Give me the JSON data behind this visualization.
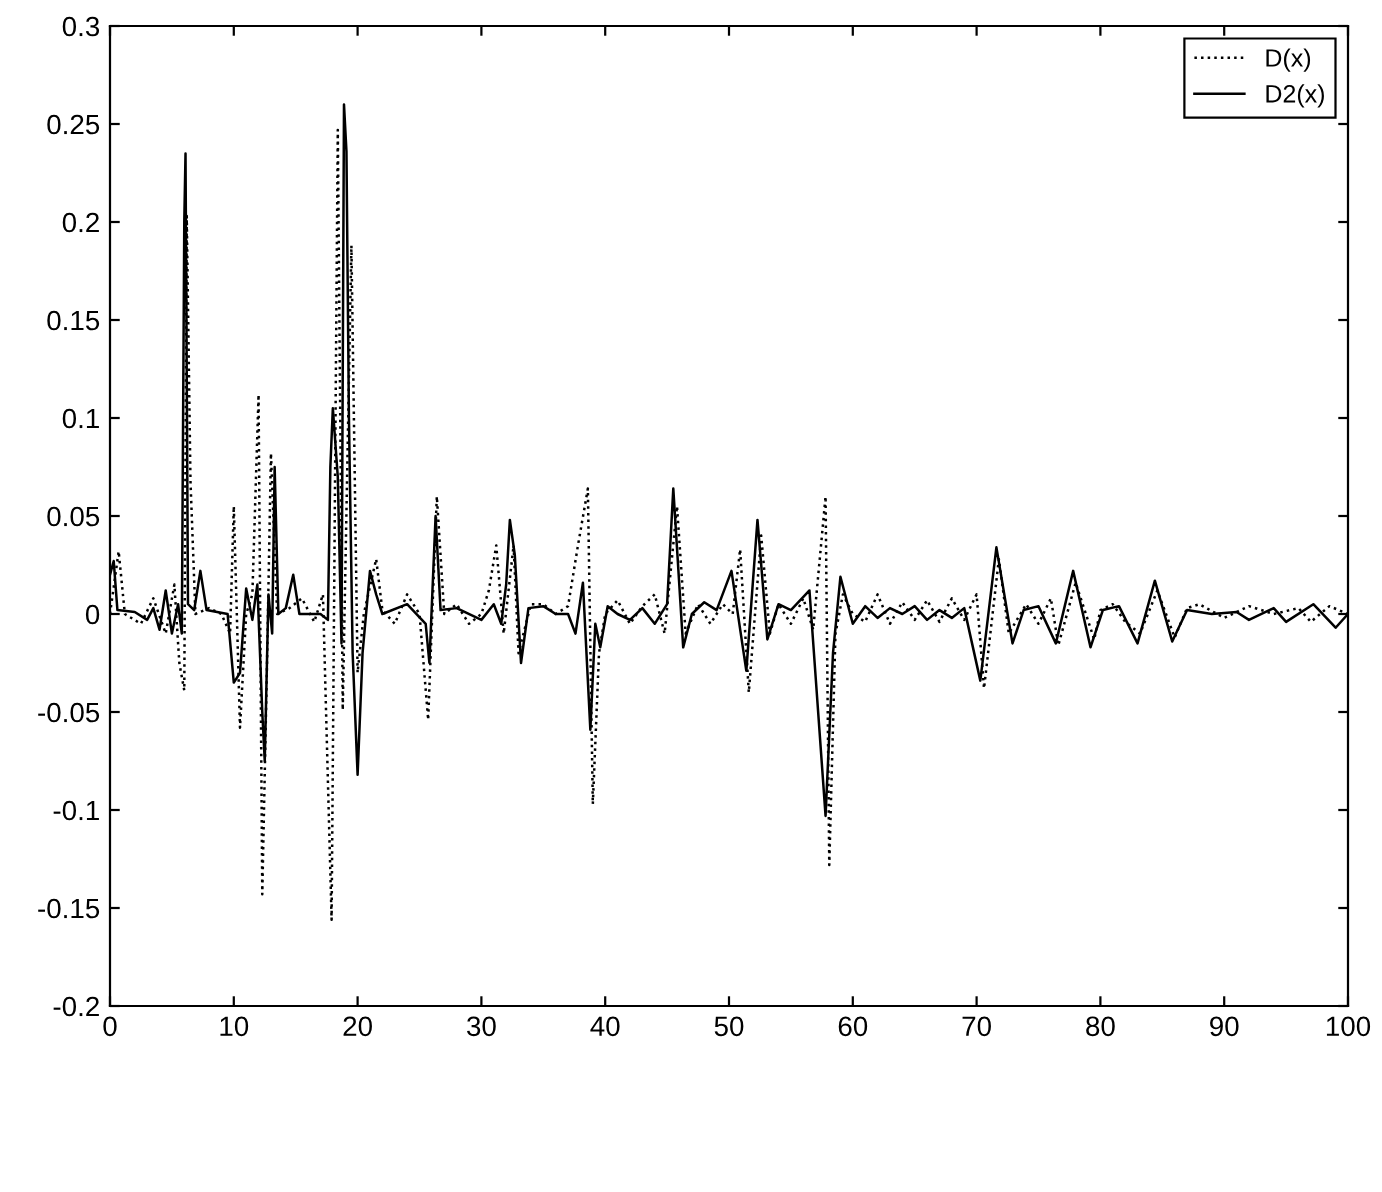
{
  "chart_data": {
    "type": "line",
    "xlim": [
      0,
      100
    ],
    "xticks": [
      0,
      10,
      20,
      30,
      40,
      50,
      60,
      70,
      80,
      90,
      100
    ],
    "ylim": [
      -0.2,
      0.3
    ],
    "yticks": [
      -0.2,
      -0.15,
      -0.1,
      -0.05,
      0,
      0.05,
      0.1,
      0.15,
      0.2,
      0.25,
      0.3
    ],
    "grid": false,
    "legend": "top right",
    "marker": "none",
    "series": [
      {
        "name": "D(x)",
        "color": "#000000",
        "line_style": "dotted",
        "x": [
          0,
          0.7,
          1.2,
          2.5,
          3.5,
          4.5,
          5.2,
          5.6,
          6.0,
          6.2,
          6.5,
          6.9,
          8,
          9,
          9.7,
          10.0,
          10.5,
          11,
          11.5,
          12.0,
          12.3,
          12.7,
          13.0,
          13.5,
          14.5,
          15.5,
          16.5,
          17.2,
          17.9,
          18.4,
          18.8,
          19.5,
          20.0,
          20.5,
          21.5,
          22,
          23,
          24,
          25,
          25.7,
          26.4,
          27,
          28,
          29,
          30,
          30.6,
          31.2,
          31.8,
          32.6,
          33,
          34,
          35,
          36,
          37,
          37.8,
          38.6,
          39.0,
          39.5,
          40,
          41,
          42,
          43,
          44,
          44.8,
          45.8,
          46.5,
          47.5,
          48.5,
          49.5,
          50.3,
          50.9,
          51.6,
          52.6,
          53.3,
          54,
          55,
          56,
          56.8,
          57.8,
          58.1,
          58.6,
          59.2,
          60,
          61,
          62,
          63,
          64,
          65,
          66,
          67,
          68,
          69,
          70.0,
          70.6,
          71.8,
          72.6,
          74,
          75,
          76,
          76.6,
          78,
          79.5,
          80,
          81,
          82,
          83.2,
          84.6,
          86,
          87,
          88,
          90,
          92,
          94,
          96,
          97,
          98.5,
          100
        ],
        "values": [
          0,
          0.032,
          0,
          -0.005,
          0.008,
          -0.01,
          0.015,
          -0.025,
          -0.039,
          0.203,
          0.068,
          0,
          0.003,
          0,
          -0.01,
          0.055,
          -0.058,
          0,
          0.01,
          0.112,
          -0.143,
          -0.02,
          0.082,
          0,
          0.003,
          0.008,
          -0.004,
          0.01,
          -0.156,
          0.247,
          -0.049,
          0.188,
          -0.03,
          0,
          0.028,
          0.002,
          -0.005,
          0.01,
          0,
          -0.054,
          0.06,
          0,
          0.005,
          -0.005,
          0,
          0.012,
          0.035,
          -0.01,
          0.035,
          -0.02,
          0.005,
          0.005,
          0,
          0.004,
          0.035,
          0.064,
          -0.097,
          -0.02,
          0,
          0.007,
          -0.005,
          0.004,
          0.01,
          -0.01,
          0.055,
          -0.01,
          0.005,
          -0.005,
          0.005,
          0,
          0.033,
          -0.04,
          0.04,
          -0.01,
          0.005,
          -0.005,
          0.008,
          -0.008,
          0.06,
          -0.128,
          -0.01,
          0.01,
          0,
          -0.004,
          0.01,
          -0.005,
          0.006,
          -0.003,
          0.007,
          -0.004,
          0.008,
          -0.003,
          0.01,
          -0.038,
          0.028,
          -0.01,
          0.005,
          -0.005,
          0.008,
          -0.016,
          0.016,
          -0.013,
          0.002,
          0.005,
          -0.004,
          -0.01,
          0.012,
          -0.012,
          0.003,
          0.005,
          -0.002,
          0.004,
          0,
          0.003,
          -0.004,
          0.004,
          0
        ]
      },
      {
        "name": "D2(x)",
        "color": "#000000",
        "line_style": "solid",
        "x": [
          0,
          0.3,
          0.6,
          2,
          3,
          3.5,
          4,
          4.5,
          5,
          5.5,
          5.8,
          6.0,
          6.1,
          6.3,
          6.8,
          7.3,
          7.8,
          9.5,
          10,
          10.5,
          11,
          11.5,
          11.9,
          12.3,
          12.5,
          12.8,
          13.1,
          13.3,
          13.6,
          14.2,
          14.8,
          15.3,
          17,
          17.6,
          17.8,
          18.0,
          18.4,
          18.7,
          18.9,
          19.1,
          19.3,
          19.6,
          20.0,
          20.4,
          21,
          21.5,
          22,
          24,
          25.5,
          25.8,
          26.3,
          26.7,
          28,
          30,
          31,
          31.6,
          32.0,
          32.3,
          32.7,
          33.2,
          33.8,
          35,
          36,
          37,
          37.6,
          38.2,
          38.8,
          39.2,
          39.6,
          40.2,
          41,
          42,
          43,
          44,
          45,
          45.5,
          46.3,
          47,
          48,
          49,
          50.2,
          51.4,
          52.3,
          53.1,
          54,
          55,
          56.5,
          57.8,
          58.4,
          59,
          60,
          61,
          62,
          63,
          64,
          65,
          66,
          67,
          68,
          69,
          70.3,
          71.6,
          72.9,
          73.8,
          75,
          76.4,
          77.8,
          79.2,
          80.2,
          81.5,
          83.0,
          84.4,
          85.8,
          87,
          89,
          91,
          92,
          94,
          95,
          97.2,
          99,
          100
        ],
        "values": [
          0.02,
          0.027,
          0.002,
          0.001,
          -0.003,
          0.003,
          -0.008,
          0.012,
          -0.01,
          0.005,
          -0.01,
          0.2,
          0.235,
          0.005,
          0.002,
          0.022,
          0.002,
          0,
          -0.035,
          -0.03,
          0.013,
          -0.003,
          0.015,
          -0.05,
          -0.075,
          0.01,
          -0.01,
          0.075,
          0,
          0.003,
          0.02,
          0,
          0,
          -0.003,
          0.075,
          0.105,
          0.07,
          -0.015,
          0.26,
          0.236,
          0.1,
          -0.02,
          -0.082,
          -0.02,
          0.022,
          0.01,
          0,
          0.005,
          -0.005,
          -0.025,
          0.05,
          0.002,
          0.003,
          -0.003,
          0.005,
          -0.005,
          0.015,
          0.048,
          0.03,
          -0.025,
          0.003,
          0.004,
          0,
          0,
          -0.01,
          0.016,
          -0.059,
          -0.005,
          -0.017,
          0.004,
          0,
          -0.003,
          0.003,
          -0.005,
          0.005,
          0.064,
          -0.017,
          0,
          0.006,
          0.002,
          0.022,
          -0.029,
          0.048,
          -0.013,
          0.005,
          0.002,
          0.012,
          -0.103,
          -0.02,
          0.019,
          -0.005,
          0.004,
          -0.002,
          0.003,
          0,
          0.004,
          -0.003,
          0.002,
          -0.002,
          0.003,
          -0.034,
          0.034,
          -0.015,
          0.002,
          0.004,
          -0.015,
          0.022,
          -0.017,
          0.002,
          0.004,
          -0.015,
          0.017,
          -0.014,
          0.002,
          0,
          0.001,
          -0.003,
          0.003,
          -0.004,
          0.005,
          -0.007,
          0
        ]
      }
    ]
  }
}
